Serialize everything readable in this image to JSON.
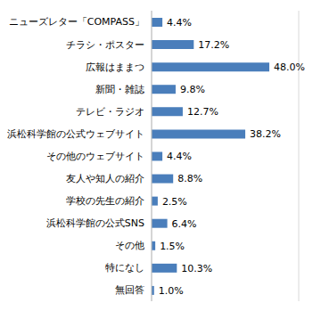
{
  "chart_data": {
    "type": "bar",
    "orientation": "horizontal",
    "categories": [
      "ニューズレター「COMPASS」",
      "チラシ・ポスター",
      "広報はままつ",
      "新聞・雑誌",
      "テレビ・ラジオ",
      "浜松科学館の公式ウェブサイト",
      "その他のウェブサイト",
      "友人や知人の紹介",
      "学校の先生の紹介",
      "浜松科学館の公式SNS",
      "その他",
      "特になし",
      "無回答"
    ],
    "values": [
      4.4,
      17.2,
      48.0,
      9.8,
      12.7,
      38.2,
      4.4,
      8.8,
      2.5,
      6.4,
      1.5,
      10.3,
      1.0
    ],
    "value_labels": [
      "4.4%",
      "17.2%",
      "48.0%",
      "9.8%",
      "12.7%",
      "38.2%",
      "4.4%",
      "8.8%",
      "2.5%",
      "6.4%",
      "1.5%",
      "10.3%",
      "1.0%"
    ],
    "color": "#4a7ebb",
    "xlim": [
      0,
      60
    ],
    "xticks": [
      0,
      20,
      40,
      60
    ],
    "grid": true,
    "data_labels": true,
    "tick_labels": "y"
  }
}
